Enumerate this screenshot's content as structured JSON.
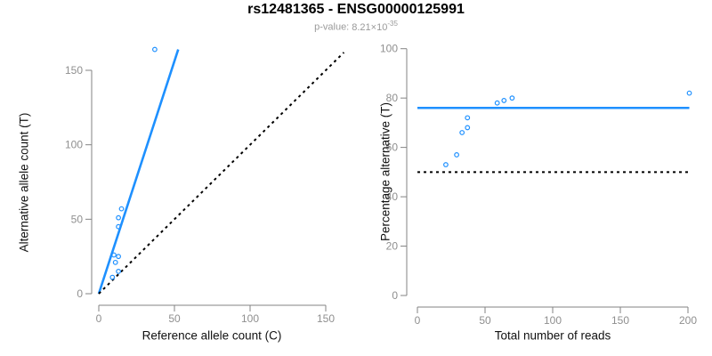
{
  "header": {
    "title": "rs12481365 - ENSG00000125991",
    "p_value": {
      "label": "p-value:",
      "value": "8.21×10",
      "exponent": "-35"
    }
  },
  "colors": {
    "accent_blue": "#1E90FF",
    "dashed_black": "#000000",
    "axis_gray": "#838383",
    "tick_label_gray": "#8f8f8f",
    "title_black": "#000000",
    "subtitle_gray": "#9a9a9a",
    "background": "#ffffff"
  },
  "chart_data": [
    {
      "type": "scatter",
      "name": "allele-counts-scatter",
      "xlabel": "Reference allele count (C)",
      "ylabel": "Alternative allele count (T)",
      "xlim": [
        0,
        162
      ],
      "ylim": [
        0,
        165
      ],
      "x_ticks": [
        0,
        50,
        100,
        150
      ],
      "y_ticks": [
        0,
        50,
        100,
        150
      ],
      "grid": false,
      "points": [
        [
          9,
          11
        ],
        [
          13,
          15
        ],
        [
          11,
          21
        ],
        [
          13,
          25
        ],
        [
          10,
          26
        ],
        [
          13,
          45
        ],
        [
          13,
          51
        ],
        [
          15,
          57
        ],
        [
          37,
          164
        ]
      ],
      "lines": [
        {
          "name": "regression-line",
          "style": "solid",
          "color": "blue",
          "from": [
            0,
            0
          ],
          "to": [
            52.5,
            164
          ]
        },
        {
          "name": "identity-line",
          "style": "dotted",
          "color": "black",
          "from": [
            0,
            0
          ],
          "to": [
            162,
            162
          ]
        }
      ]
    },
    {
      "type": "scatter",
      "name": "percentage-vs-reads-scatter",
      "xlabel": "Total number of reads",
      "ylabel": "Percentage alternative (T)",
      "xlim": [
        0,
        201
      ],
      "ylim": [
        0,
        100
      ],
      "x_ticks": [
        0,
        50,
        100,
        150,
        200
      ],
      "y_ticks": [
        0,
        20,
        40,
        60,
        80,
        100
      ],
      "grid": false,
      "points": [
        [
          21,
          53
        ],
        [
          29,
          57
        ],
        [
          33,
          66
        ],
        [
          37,
          68
        ],
        [
          37,
          72
        ],
        [
          59,
          78
        ],
        [
          64,
          79
        ],
        [
          70,
          80
        ],
        [
          201,
          82
        ]
      ],
      "lines": [
        {
          "name": "mean-percentage-line",
          "style": "solid",
          "color": "blue",
          "from": [
            0,
            76
          ],
          "to": [
            201,
            76
          ]
        },
        {
          "name": "expected-50-percent-line",
          "style": "dotted",
          "color": "black",
          "from": [
            0,
            50
          ],
          "to": [
            201,
            50
          ]
        }
      ]
    }
  ]
}
